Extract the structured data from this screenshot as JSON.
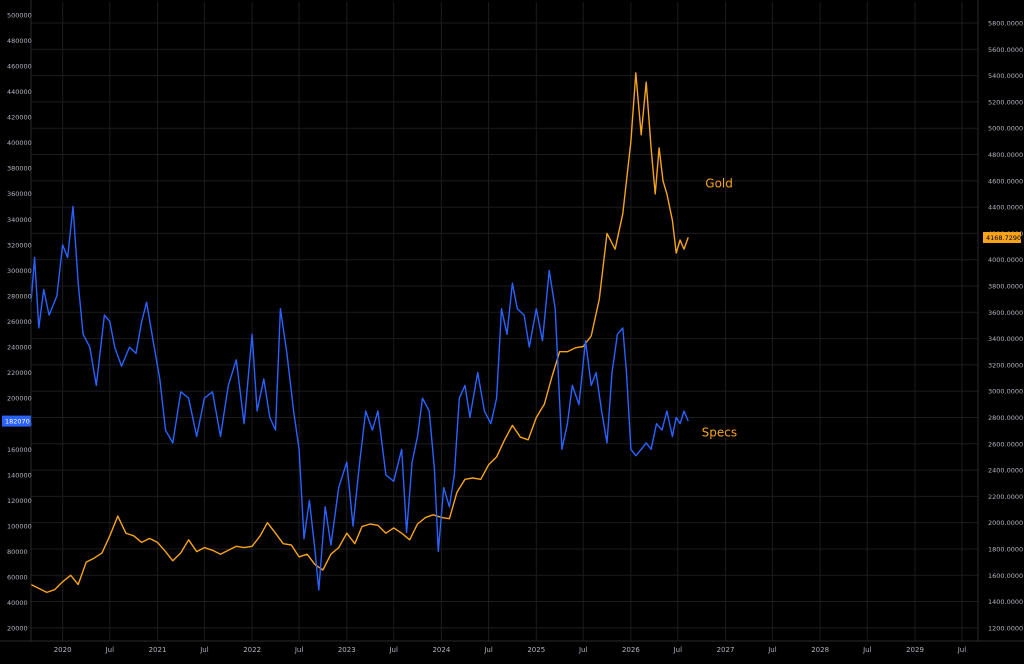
{
  "colors": {
    "background": "#000000",
    "grid": "#1c1c1c",
    "axis_text": "#b2b5be",
    "gold": "#f7a31c",
    "specs": "#2962ff",
    "specs_label": "#f7a31c",
    "badge_text": "#ffffff"
  },
  "chart_data": {
    "type": "line",
    "title": "",
    "grid": true,
    "x_axis": {
      "range": [
        "2019-09-01",
        "2029-09-01"
      ],
      "ticks": [
        {
          "date": "2020-01-01",
          "label": "2020"
        },
        {
          "date": "2020-07-01",
          "label": "Jul"
        },
        {
          "date": "2021-01-01",
          "label": "2021"
        },
        {
          "date": "2021-07-01",
          "label": "Jul"
        },
        {
          "date": "2022-01-01",
          "label": "2022"
        },
        {
          "date": "2022-07-01",
          "label": "Jul"
        },
        {
          "date": "2023-01-01",
          "label": "2023"
        },
        {
          "date": "2023-07-01",
          "label": "Jul"
        },
        {
          "date": "2024-01-01",
          "label": "2024"
        },
        {
          "date": "2024-07-01",
          "label": "Jul"
        },
        {
          "date": "2025-01-01",
          "label": "2025"
        },
        {
          "date": "2025-07-01",
          "label": "Jul"
        },
        {
          "date": "2026-01-01",
          "label": "2026"
        },
        {
          "date": "2026-07-01",
          "label": "Jul"
        },
        {
          "date": "2027-01-01",
          "label": "2027"
        },
        {
          "date": "2027-07-01",
          "label": "Jul"
        },
        {
          "date": "2028-01-01",
          "label": "2028"
        },
        {
          "date": "2028-07-01",
          "label": "Jul"
        },
        {
          "date": "2029-01-01",
          "label": "2029"
        },
        {
          "date": "2029-07-01",
          "label": "Jul"
        }
      ]
    },
    "left_axis": {
      "range": [
        10000,
        510000
      ],
      "ticks": [
        20000,
        40000,
        60000,
        80000,
        100000,
        120000,
        140000,
        160000,
        180000,
        200000,
        220000,
        240000,
        260000,
        280000,
        300000,
        320000,
        340000,
        360000,
        380000,
        400000,
        420000,
        440000,
        460000,
        480000,
        500000
      ],
      "tick_labels": [
        "20000",
        "40000",
        "60000",
        "80000",
        "100000",
        "120000",
        "140000",
        "160000",
        "180000",
        "200000",
        "220000",
        "240000",
        "260000",
        "280000",
        "300000",
        "320000",
        "340000",
        "360000",
        "380000",
        "400000",
        "420000",
        "440000",
        "460000",
        "480000",
        "500000"
      ],
      "last_value_label": "182070",
      "last_value": 182070
    },
    "right_axis": {
      "range": [
        1100,
        5960
      ],
      "ticks": [
        1200,
        1400,
        1600,
        1800,
        2000,
        2200,
        2400,
        2600,
        2800,
        3000,
        3200,
        3400,
        3600,
        3800,
        4000,
        4200,
        4400,
        4600,
        4800,
        5000,
        5200,
        5400,
        5600,
        5800
      ],
      "tick_labels": [
        "1200.0000",
        "1400.0000",
        "1600.0000",
        "1800.0000",
        "2000.0000",
        "2200.0000",
        "2400.0000",
        "2600.0000",
        "2800.0000",
        "3000.0000",
        "3200.0000",
        "3400.0000",
        "3600.0000",
        "3800.0000",
        "4000.0000",
        "4200.0000",
        "4400.0000",
        "4600.0000",
        "4800.0000",
        "5000.0000",
        "5200.0000",
        "5400.0000",
        "5600.0000",
        "5800.0000"
      ],
      "last_value_label": "4168.7290",
      "last_value": 4168.729
    },
    "series": [
      {
        "name": "Gold",
        "axis": "right",
        "points": [
          [
            "2019-09-01",
            1530
          ],
          [
            "2019-10-01",
            1500
          ],
          [
            "2019-11-01",
            1470
          ],
          [
            "2019-12-01",
            1490
          ],
          [
            "2020-01-01",
            1550
          ],
          [
            "2020-02-01",
            1600
          ],
          [
            "2020-03-01",
            1530
          ],
          [
            "2020-04-01",
            1700
          ],
          [
            "2020-05-01",
            1730
          ],
          [
            "2020-06-01",
            1770
          ],
          [
            "2020-07-01",
            1900
          ],
          [
            "2020-08-01",
            2050
          ],
          [
            "2020-09-01",
            1920
          ],
          [
            "2020-10-01",
            1900
          ],
          [
            "2020-11-01",
            1850
          ],
          [
            "2020-12-01",
            1880
          ],
          [
            "2021-01-01",
            1850
          ],
          [
            "2021-02-01",
            1780
          ],
          [
            "2021-03-01",
            1710
          ],
          [
            "2021-04-01",
            1770
          ],
          [
            "2021-05-01",
            1870
          ],
          [
            "2021-06-01",
            1780
          ],
          [
            "2021-07-01",
            1810
          ],
          [
            "2021-08-01",
            1790
          ],
          [
            "2021-09-01",
            1760
          ],
          [
            "2021-10-01",
            1790
          ],
          [
            "2021-11-01",
            1820
          ],
          [
            "2021-12-01",
            1810
          ],
          [
            "2022-01-01",
            1820
          ],
          [
            "2022-02-01",
            1900
          ],
          [
            "2022-03-01",
            2000
          ],
          [
            "2022-04-01",
            1920
          ],
          [
            "2022-05-01",
            1840
          ],
          [
            "2022-06-01",
            1830
          ],
          [
            "2022-07-01",
            1740
          ],
          [
            "2022-08-01",
            1760
          ],
          [
            "2022-09-01",
            1680
          ],
          [
            "2022-10-01",
            1640
          ],
          [
            "2022-11-01",
            1760
          ],
          [
            "2022-12-01",
            1810
          ],
          [
            "2023-01-01",
            1920
          ],
          [
            "2023-02-01",
            1840
          ],
          [
            "2023-03-01",
            1970
          ],
          [
            "2023-04-01",
            1990
          ],
          [
            "2023-05-01",
            1980
          ],
          [
            "2023-06-01",
            1920
          ],
          [
            "2023-07-01",
            1960
          ],
          [
            "2023-08-01",
            1920
          ],
          [
            "2023-09-01",
            1870
          ],
          [
            "2023-10-01",
            1990
          ],
          [
            "2023-11-01",
            2040
          ],
          [
            "2023-12-01",
            2060
          ],
          [
            "2024-01-01",
            2040
          ],
          [
            "2024-02-01",
            2030
          ],
          [
            "2024-03-01",
            2230
          ],
          [
            "2024-04-01",
            2330
          ],
          [
            "2024-05-01",
            2340
          ],
          [
            "2024-06-01",
            2330
          ],
          [
            "2024-07-01",
            2440
          ],
          [
            "2024-08-01",
            2500
          ],
          [
            "2024-09-01",
            2630
          ],
          [
            "2024-10-01",
            2740
          ],
          [
            "2024-11-01",
            2650
          ],
          [
            "2024-12-01",
            2630
          ],
          [
            "2025-01-01",
            2800
          ],
          [
            "2025-02-01",
            2900
          ],
          [
            "2025-03-01",
            3100
          ],
          [
            "2025-04-01",
            3300
          ],
          [
            "2025-05-01",
            3300
          ],
          [
            "2025-06-01",
            3330
          ],
          [
            "2025-07-01",
            3340
          ],
          [
            "2025-08-01",
            3420
          ],
          [
            "2025-09-01",
            3700
          ],
          [
            "2025-10-01",
            4200
          ],
          [
            "2025-11-01",
            4080
          ],
          [
            "2025-12-01",
            4350
          ],
          [
            "2026-01-01",
            4900
          ],
          [
            "2026-01-20",
            5420
          ],
          [
            "2026-02-10",
            4950
          ],
          [
            "2026-03-01",
            5350
          ],
          [
            "2026-03-20",
            4850
          ],
          [
            "2026-04-05",
            4500
          ],
          [
            "2026-04-20",
            4850
          ],
          [
            "2026-05-05",
            4600
          ],
          [
            "2026-05-20",
            4500
          ],
          [
            "2026-06-10",
            4300
          ],
          [
            "2026-06-25",
            4050
          ],
          [
            "2026-07-10",
            4150
          ],
          [
            "2026-07-25",
            4080
          ],
          [
            "2026-08-10",
            4170
          ]
        ]
      },
      {
        "name": "Specs",
        "axis": "left",
        "points": [
          [
            "2019-09-01",
            275000
          ],
          [
            "2019-09-15",
            310000
          ],
          [
            "2019-10-01",
            255000
          ],
          [
            "2019-10-20",
            285000
          ],
          [
            "2019-11-10",
            265000
          ],
          [
            "2019-12-10",
            280000
          ],
          [
            "2020-01-01",
            320000
          ],
          [
            "2020-01-20",
            310000
          ],
          [
            "2020-02-10",
            350000
          ],
          [
            "2020-03-01",
            290000
          ],
          [
            "2020-03-20",
            250000
          ],
          [
            "2020-04-15",
            240000
          ],
          [
            "2020-05-10",
            210000
          ],
          [
            "2020-06-10",
            265000
          ],
          [
            "2020-07-01",
            260000
          ],
          [
            "2020-07-20",
            240000
          ],
          [
            "2020-08-15",
            225000
          ],
          [
            "2020-09-15",
            240000
          ],
          [
            "2020-10-10",
            235000
          ],
          [
            "2020-11-01",
            260000
          ],
          [
            "2020-11-20",
            275000
          ],
          [
            "2020-12-15",
            245000
          ],
          [
            "2021-01-10",
            215000
          ],
          [
            "2021-02-01",
            175000
          ],
          [
            "2021-03-01",
            165000
          ],
          [
            "2021-04-01",
            205000
          ],
          [
            "2021-05-01",
            200000
          ],
          [
            "2021-06-01",
            170000
          ],
          [
            "2021-07-01",
            200000
          ],
          [
            "2021-08-01",
            205000
          ],
          [
            "2021-09-01",
            170000
          ],
          [
            "2021-10-01",
            210000
          ],
          [
            "2021-11-01",
            230000
          ],
          [
            "2021-12-01",
            180000
          ],
          [
            "2022-01-01",
            250000
          ],
          [
            "2022-01-20",
            190000
          ],
          [
            "2022-02-15",
            215000
          ],
          [
            "2022-03-10",
            185000
          ],
          [
            "2022-04-01",
            175000
          ],
          [
            "2022-04-20",
            270000
          ],
          [
            "2022-05-15",
            235000
          ],
          [
            "2022-06-10",
            190000
          ],
          [
            "2022-07-01",
            160000
          ],
          [
            "2022-07-20",
            90000
          ],
          [
            "2022-08-10",
            120000
          ],
          [
            "2022-09-01",
            80000
          ],
          [
            "2022-09-15",
            50000
          ],
          [
            "2022-10-10",
            115000
          ],
          [
            "2022-11-01",
            85000
          ],
          [
            "2022-12-01",
            130000
          ],
          [
            "2023-01-01",
            150000
          ],
          [
            "2023-01-25",
            100000
          ],
          [
            "2023-02-20",
            150000
          ],
          [
            "2023-03-15",
            190000
          ],
          [
            "2023-04-10",
            175000
          ],
          [
            "2023-05-01",
            190000
          ],
          [
            "2023-06-01",
            140000
          ],
          [
            "2023-07-01",
            135000
          ],
          [
            "2023-08-01",
            160000
          ],
          [
            "2023-08-20",
            95000
          ],
          [
            "2023-09-10",
            150000
          ],
          [
            "2023-10-01",
            170000
          ],
          [
            "2023-10-20",
            200000
          ],
          [
            "2023-11-15",
            190000
          ],
          [
            "2023-12-05",
            145000
          ],
          [
            "2023-12-20",
            80000
          ],
          [
            "2024-01-10",
            130000
          ],
          [
            "2024-02-01",
            115000
          ],
          [
            "2024-02-20",
            140000
          ],
          [
            "2024-03-10",
            200000
          ],
          [
            "2024-04-01",
            210000
          ],
          [
            "2024-04-20",
            185000
          ],
          [
            "2024-05-20",
            220000
          ],
          [
            "2024-06-15",
            190000
          ],
          [
            "2024-07-10",
            180000
          ],
          [
            "2024-08-01",
            200000
          ],
          [
            "2024-08-20",
            270000
          ],
          [
            "2024-09-10",
            250000
          ],
          [
            "2024-10-01",
            290000
          ],
          [
            "2024-10-20",
            270000
          ],
          [
            "2024-11-15",
            265000
          ],
          [
            "2024-12-05",
            240000
          ],
          [
            "2025-01-01",
            270000
          ],
          [
            "2025-01-25",
            245000
          ],
          [
            "2025-02-20",
            300000
          ],
          [
            "2025-03-15",
            270000
          ],
          [
            "2025-04-10",
            160000
          ],
          [
            "2025-05-01",
            180000
          ],
          [
            "2025-05-20",
            210000
          ],
          [
            "2025-06-15",
            195000
          ],
          [
            "2025-07-10",
            245000
          ],
          [
            "2025-08-01",
            210000
          ],
          [
            "2025-08-20",
            220000
          ],
          [
            "2025-09-10",
            190000
          ],
          [
            "2025-10-01",
            165000
          ],
          [
            "2025-10-20",
            220000
          ],
          [
            "2025-11-10",
            250000
          ],
          [
            "2025-12-01",
            255000
          ],
          [
            "2025-12-15",
            220000
          ],
          [
            "2026-01-01",
            160000
          ],
          [
            "2026-01-20",
            155000
          ],
          [
            "2026-02-10",
            160000
          ],
          [
            "2026-03-01",
            165000
          ],
          [
            "2026-03-20",
            160000
          ],
          [
            "2026-04-10",
            180000
          ],
          [
            "2026-05-01",
            175000
          ],
          [
            "2026-05-20",
            190000
          ],
          [
            "2026-06-10",
            170000
          ],
          [
            "2026-06-25",
            185000
          ],
          [
            "2026-07-10",
            180000
          ],
          [
            "2026-07-25",
            190000
          ],
          [
            "2026-08-10",
            182070
          ]
        ]
      }
    ],
    "annotations": [
      {
        "text": "Gold",
        "date": "2026-10-15",
        "value": 4550,
        "axis": "right",
        "color_key": "gold"
      },
      {
        "text": "Specs",
        "date": "2026-10-01",
        "value": 170000,
        "axis": "left",
        "color_key": "specs_label"
      }
    ]
  }
}
